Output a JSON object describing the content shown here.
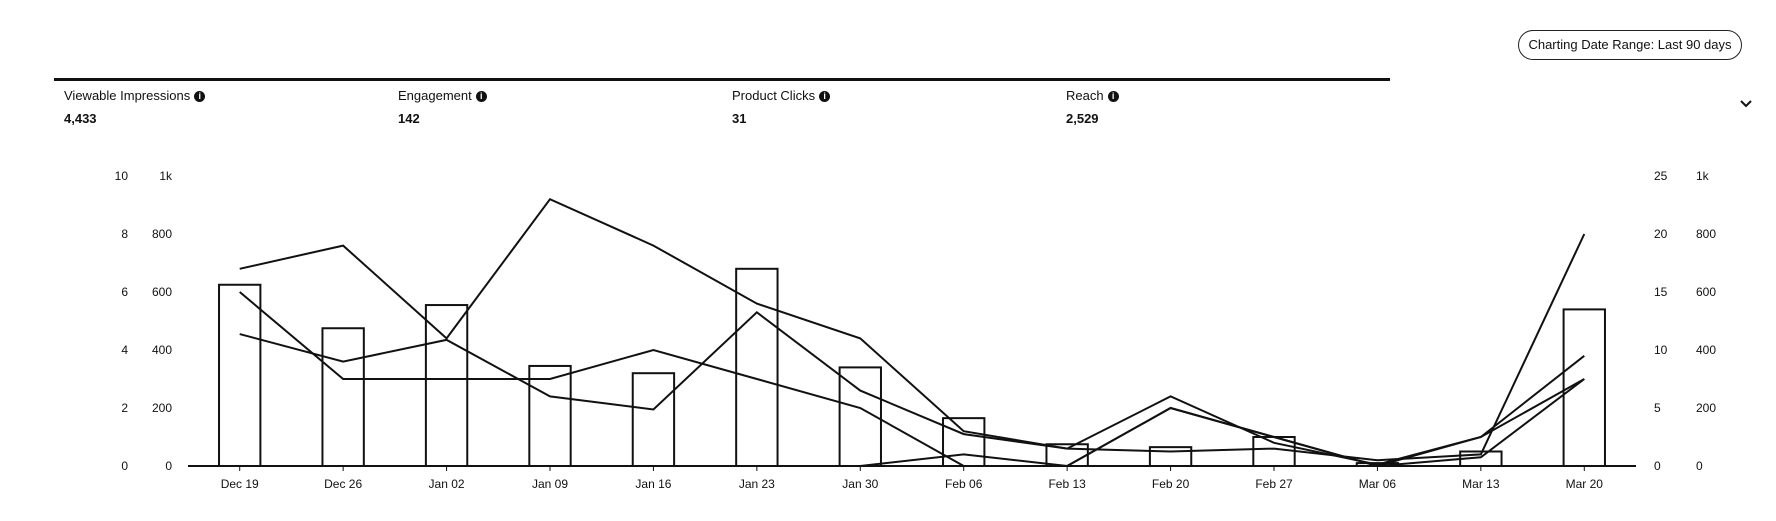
{
  "date_range": {
    "label": "Charting Date Range: Last 90 days"
  },
  "metrics": [
    {
      "label": "Viewable Impressions",
      "value": "4,433"
    },
    {
      "label": "Engagement",
      "value": "142"
    },
    {
      "label": "Product Clicks",
      "value": "31"
    },
    {
      "label": "Reach",
      "value": "2,529"
    }
  ],
  "icons": {
    "info": "info-icon",
    "expand": "chevron-down-icon"
  },
  "chart_data": {
    "type": "bar",
    "categories": [
      "Dec 19",
      "Dec 26",
      "Jan 02",
      "Jan 09",
      "Jan 16",
      "Jan 23",
      "Jan 30",
      "Feb 06",
      "Feb 13",
      "Feb 20",
      "Feb 27",
      "Mar 06",
      "Mar 13",
      "Mar 20"
    ],
    "axes": {
      "left_outer": {
        "ticks": [
          "0",
          "2",
          "4",
          "6",
          "8",
          "10"
        ],
        "ylim": [
          0,
          10
        ]
      },
      "left_inner": {
        "ticks": [
          "0",
          "200",
          "400",
          "600",
          "800",
          "1k"
        ],
        "ylim": [
          0,
          1000
        ]
      },
      "right_inner": {
        "ticks": [
          "0",
          "5",
          "10",
          "15",
          "20",
          "25"
        ],
        "ylim": [
          0,
          25
        ]
      },
      "right_outer": {
        "ticks": [
          "0",
          "200",
          "400",
          "600",
          "800",
          "1k"
        ],
        "ylim": [
          0,
          1000
        ]
      }
    },
    "bars": {
      "axis": "left_inner",
      "values": [
        625,
        475,
        555,
        345,
        320,
        680,
        340,
        165,
        75,
        65,
        100,
        10,
        50,
        540
      ]
    },
    "series": [
      {
        "axis": "left_outer",
        "values": [
          6.8,
          7.6,
          4.4,
          9.2,
          7.6,
          5.6,
          4.4,
          1.2,
          0.6,
          0.5,
          0.6,
          0.2,
          0.4,
          8.0
        ]
      },
      {
        "axis": "right_inner",
        "values": [
          15,
          7.5,
          7.5,
          7.5,
          10,
          7.5,
          5,
          0,
          0,
          5,
          2.5,
          0,
          2.5,
          7.5
        ]
      },
      {
        "axis": "left_inner",
        "values": [
          455,
          360,
          435,
          240,
          195,
          530,
          260,
          110,
          60,
          240,
          80,
          5,
          100,
          380
        ]
      },
      {
        "axis": "right_outer",
        "values": [
          0,
          0,
          0,
          0,
          0,
          0,
          0,
          40,
          0,
          200,
          100,
          0,
          30,
          300
        ]
      }
    ],
    "grid": false,
    "legend": "none"
  }
}
